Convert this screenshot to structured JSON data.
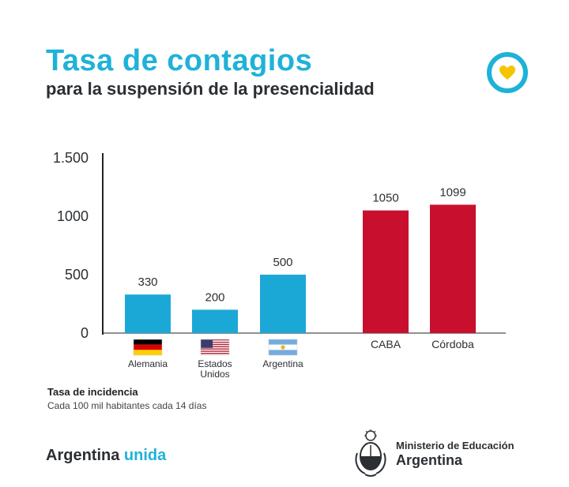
{
  "header": {
    "title": "Tasa de contagios",
    "subtitle": "para la suspensión de la presencialidad"
  },
  "colors": {
    "accent": "#1fb2d8",
    "bar_blue": "#1ca8d6",
    "bar_red": "#c8102e",
    "text_dark": "#2b2f33"
  },
  "icons": {
    "badge": "heart-badge-icon",
    "flags": [
      "flag-germany-icon",
      "flag-usa-icon",
      "flag-argentina-icon"
    ],
    "seal": "argentina-coat-of-arms-icon"
  },
  "chart_data": {
    "type": "bar",
    "title": "Tasa de contagios",
    "xlabel": "",
    "ylabel": "",
    "ylim": [
      0,
      1500
    ],
    "yticks": [
      0,
      500,
      1000,
      1500
    ],
    "ytick_labels": [
      "0",
      "500",
      "1000",
      "1.500"
    ],
    "categories": [
      "Alemania",
      "Estados Unidos",
      "Argentina",
      "CABA",
      "Córdoba"
    ],
    "category_display": [
      [
        "Alemania"
      ],
      [
        "Estados",
        "Unidos"
      ],
      [
        "Argentina"
      ],
      [
        "CABA"
      ],
      [
        "Córdoba"
      ]
    ],
    "values": [
      330,
      200,
      500,
      1050,
      1099
    ],
    "bar_colors": [
      "#1ca8d6",
      "#1ca8d6",
      "#1ca8d6",
      "#c8102e",
      "#c8102e"
    ],
    "flags": [
      "germany",
      "usa",
      "argentina",
      null,
      null
    ],
    "grid": false
  },
  "note": {
    "title": "Tasa de incidencia",
    "subtitle": "Cada 100 mil habitantes cada 14 días"
  },
  "footer": {
    "brand_main": "Argentina",
    "brand_accent": "unida",
    "ministry_line1": "Ministerio de Educación",
    "ministry_line2": "Argentina"
  }
}
